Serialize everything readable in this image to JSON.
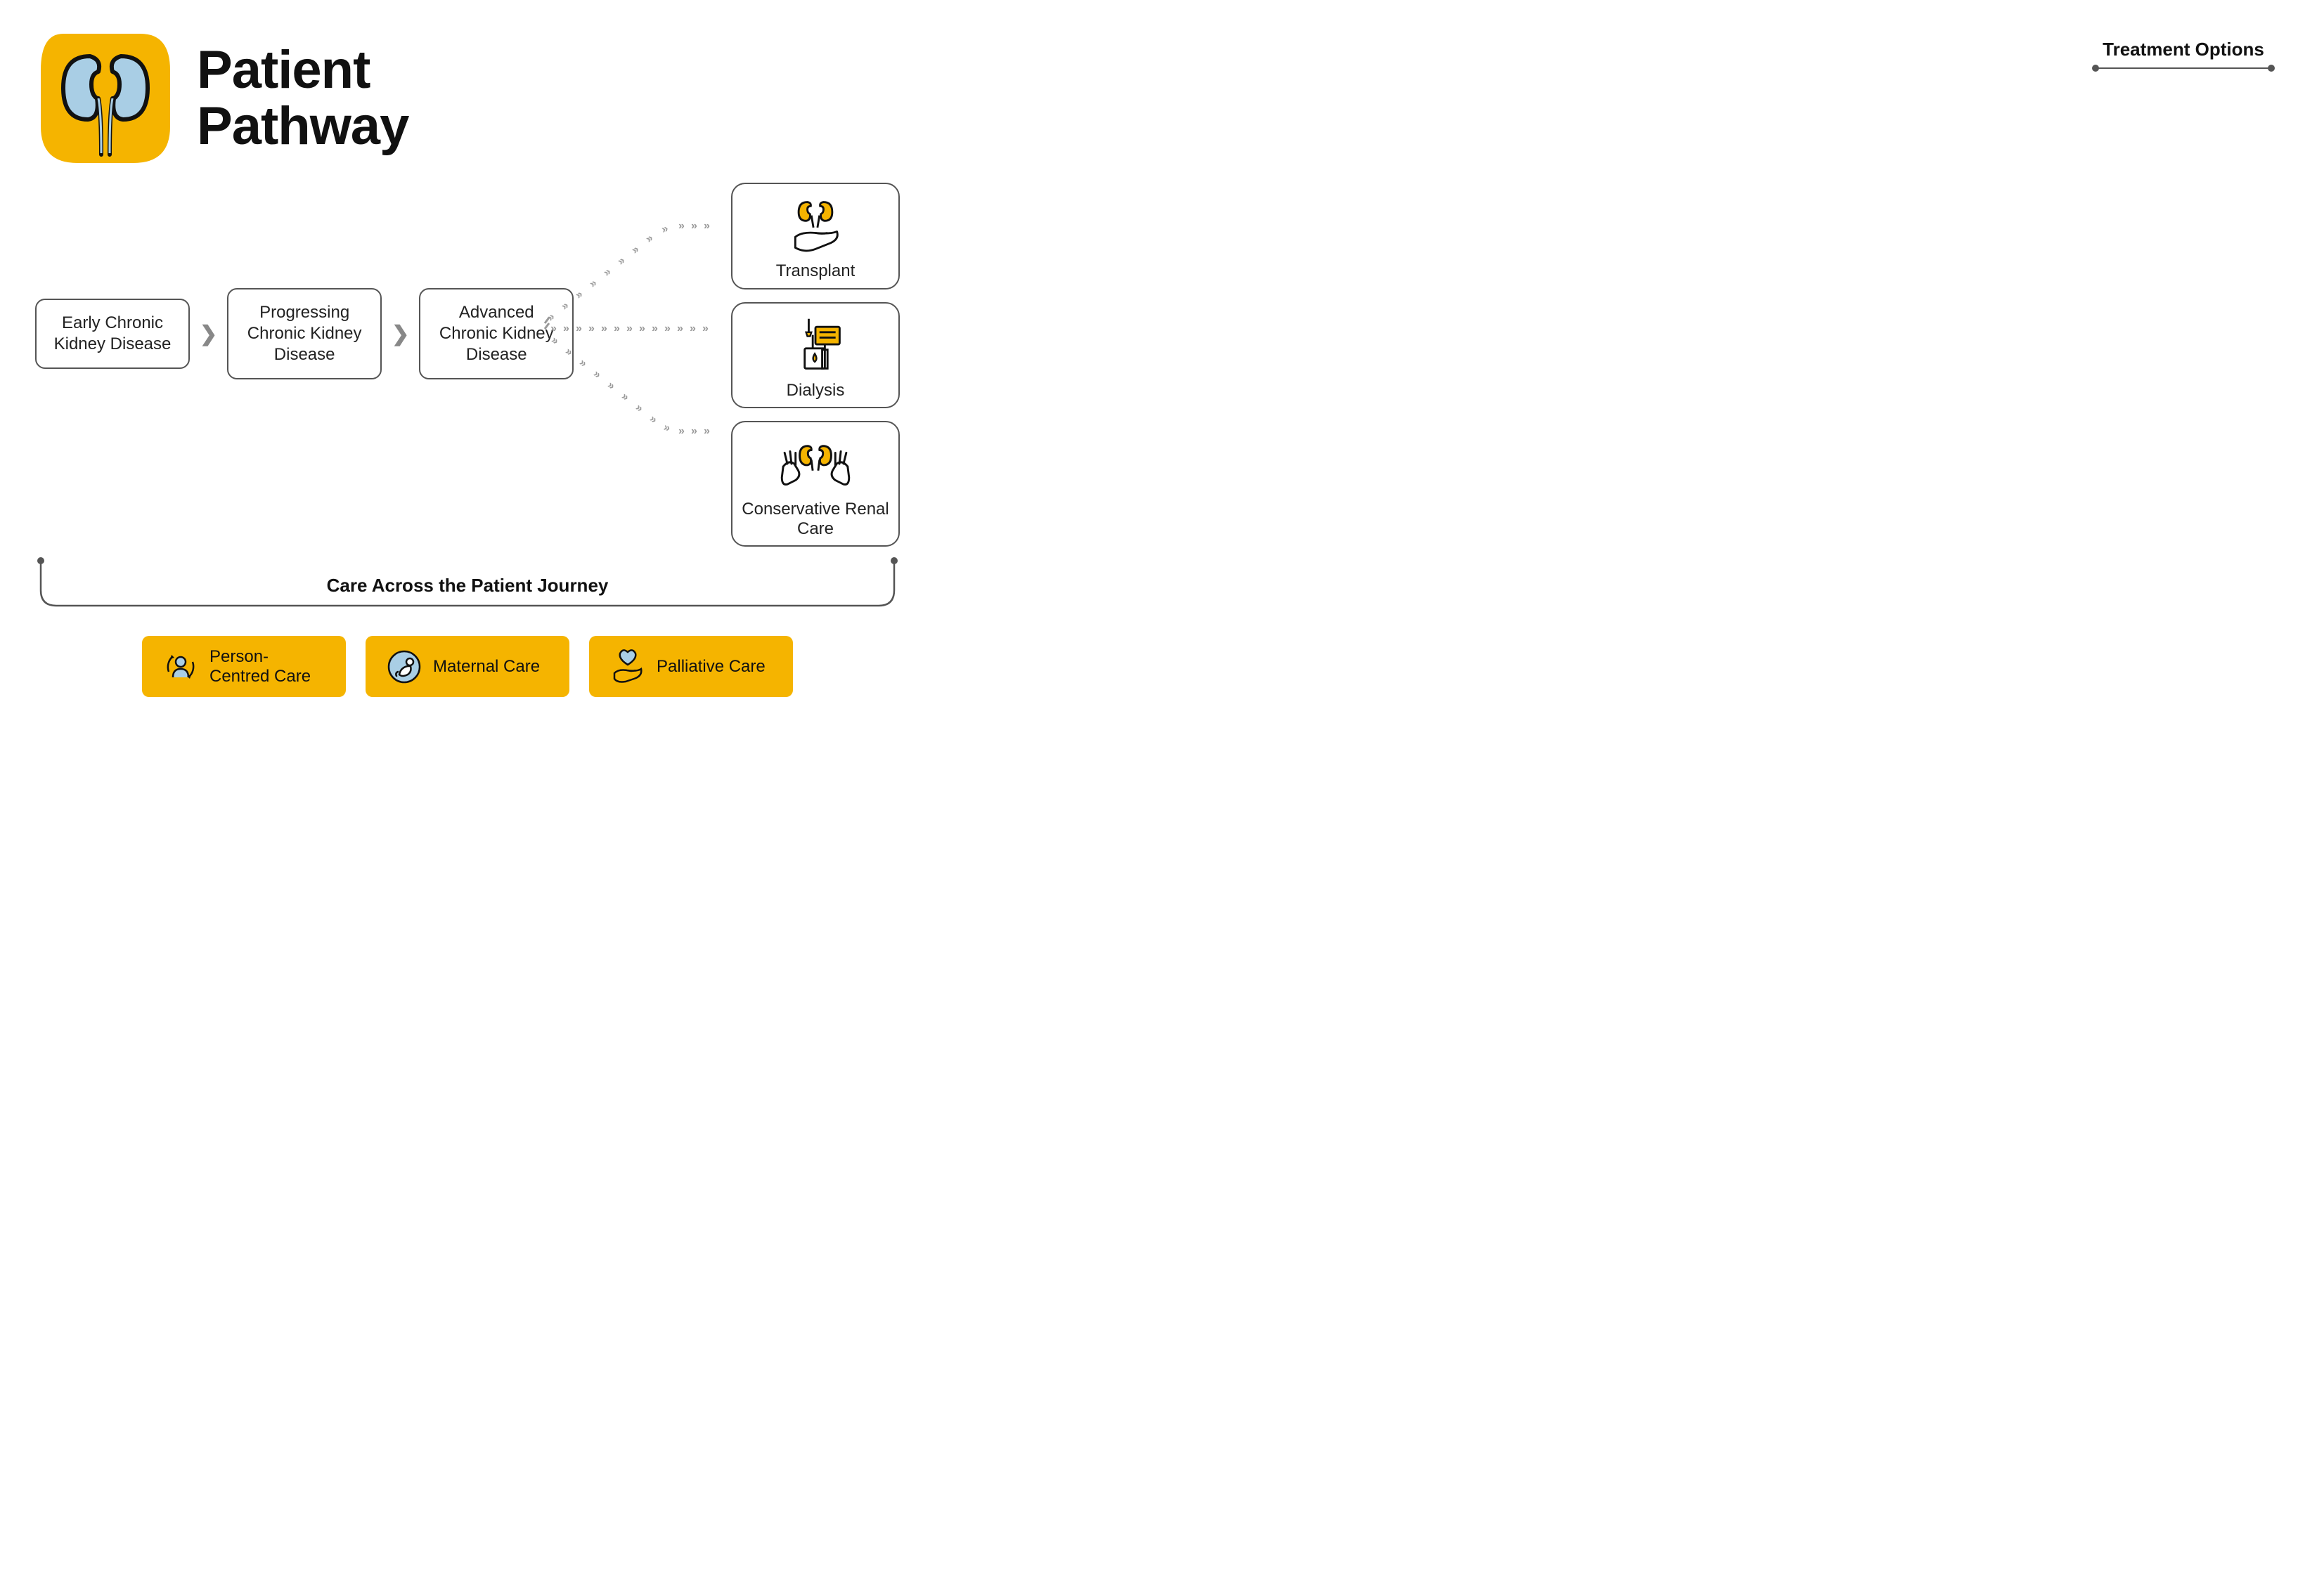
{
  "colors": {
    "accent": "#f5b400",
    "iconBlue": "#a9cee5",
    "border": "#555555",
    "chevron": "#999999",
    "text": "#111111",
    "background": "#ffffff"
  },
  "header": {
    "title_line1": "Patient",
    "title_line2": "Pathway"
  },
  "treatment_header": "Treatment Options",
  "stages": [
    {
      "label": "Early Chronic Kidney Disease"
    },
    {
      "label": "Progressing Chronic Kidney Disease"
    },
    {
      "label": "Advanced Chronic Kidney Disease"
    }
  ],
  "treatments": [
    {
      "icon": "transplant",
      "label": "Transplant"
    },
    {
      "icon": "dialysis",
      "label": "Dialysis"
    },
    {
      "icon": "conservative",
      "label": "Conservative Renal Care"
    }
  ],
  "journey_label": "Care Across the Patient Journey",
  "care_types": [
    {
      "icon": "person",
      "label": "Person-Centred Care"
    },
    {
      "icon": "maternal",
      "label": "Maternal Care"
    },
    {
      "icon": "palliative",
      "label": "Palliative Care"
    }
  ],
  "layout": {
    "stage_box_width": 220,
    "treatment_box_width": 240,
    "care_card_min_width": 290
  }
}
